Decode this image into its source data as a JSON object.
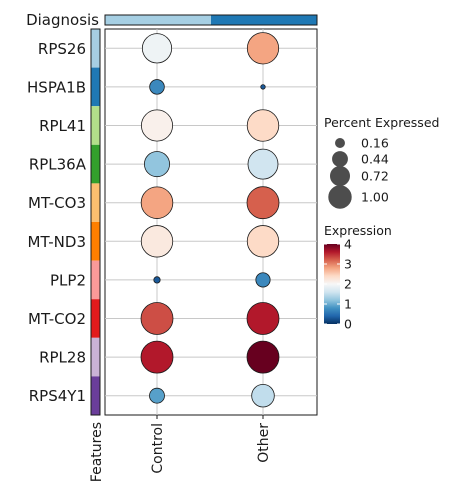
{
  "chart_data": {
    "type": "scatter",
    "subtype": "dot-plot",
    "diagnosis_label": "Diagnosis",
    "features_label": "Features",
    "groups": [
      "Control",
      "Other"
    ],
    "group_colors": [
      "#a6cfe3",
      "#1f78b4"
    ],
    "features": [
      "RPS26",
      "HSPA1B",
      "RPL41",
      "RPL36A",
      "MT-CO3",
      "MT-ND3",
      "PLP2",
      "MT-CO2",
      "RPL28",
      "RPS4Y1"
    ],
    "feature_colors": [
      "#a6cee3",
      "#1f78b4",
      "#b2df8a",
      "#33a02c",
      "#fdbf6f",
      "#ff7f00",
      "#fb9a99",
      "#e31a1c",
      "#cab2d6",
      "#6a3d9a"
    ],
    "points": [
      {
        "feature": "RPS26",
        "group": "Control",
        "pct": 0.84,
        "expr": 1.9
      },
      {
        "feature": "RPS26",
        "group": "Other",
        "pct": 0.96,
        "expr": 2.8
      },
      {
        "feature": "HSPA1B",
        "group": "Control",
        "pct": 0.21,
        "expr": 0.7
      },
      {
        "feature": "HSPA1B",
        "group": "Other",
        "pct": 0.02,
        "expr": 0.3
      },
      {
        "feature": "RPL41",
        "group": "Control",
        "pct": 0.95,
        "expr": 2.1
      },
      {
        "feature": "RPL41",
        "group": "Other",
        "pct": 0.97,
        "expr": 2.4
      },
      {
        "feature": "RPL36A",
        "group": "Control",
        "pct": 0.62,
        "expr": 1.2
      },
      {
        "feature": "RPL36A",
        "group": "Other",
        "pct": 0.88,
        "expr": 1.6
      },
      {
        "feature": "MT-CO3",
        "group": "Control",
        "pct": 0.98,
        "expr": 2.8
      },
      {
        "feature": "MT-CO3",
        "group": "Other",
        "pct": 1.0,
        "expr": 3.2
      },
      {
        "feature": "MT-ND3",
        "group": "Control",
        "pct": 0.97,
        "expr": 2.2
      },
      {
        "feature": "MT-ND3",
        "group": "Other",
        "pct": 0.97,
        "expr": 2.4
      },
      {
        "feature": "PLP2",
        "group": "Control",
        "pct": 0.04,
        "expr": 0.3
      },
      {
        "feature": "PLP2",
        "group": "Other",
        "pct": 0.2,
        "expr": 0.7
      },
      {
        "feature": "MT-CO2",
        "group": "Control",
        "pct": 1.0,
        "expr": 3.3
      },
      {
        "feature": "MT-CO2",
        "group": "Other",
        "pct": 1.0,
        "expr": 3.6
      },
      {
        "feature": "RPL28",
        "group": "Control",
        "pct": 1.0,
        "expr": 3.6
      },
      {
        "feature": "RPL28",
        "group": "Other",
        "pct": 1.0,
        "expr": 4.0
      },
      {
        "feature": "RPS4Y1",
        "group": "Control",
        "pct": 0.22,
        "expr": 0.9
      },
      {
        "feature": "RPS4Y1",
        "group": "Other",
        "pct": 0.5,
        "expr": 1.5
      }
    ],
    "size_legend": {
      "title": "Percent Expressed",
      "values": [
        0.16,
        0.44,
        0.72,
        1.0
      ],
      "labels": [
        "0.16",
        "0.44",
        "0.72",
        "1.00"
      ]
    },
    "color_legend": {
      "title": "Expression",
      "range": [
        0,
        4
      ],
      "ticks": [
        0,
        1,
        2,
        3,
        4
      ],
      "tick_labels": [
        "0",
        "1",
        "2",
        "3",
        "4"
      ],
      "stops": [
        "#053061",
        "#2166ac",
        "#4393c3",
        "#92c5de",
        "#d1e5f0",
        "#f7f7f7",
        "#fddbc7",
        "#f4a582",
        "#d6604d",
        "#b2182b",
        "#67001f"
      ]
    }
  }
}
